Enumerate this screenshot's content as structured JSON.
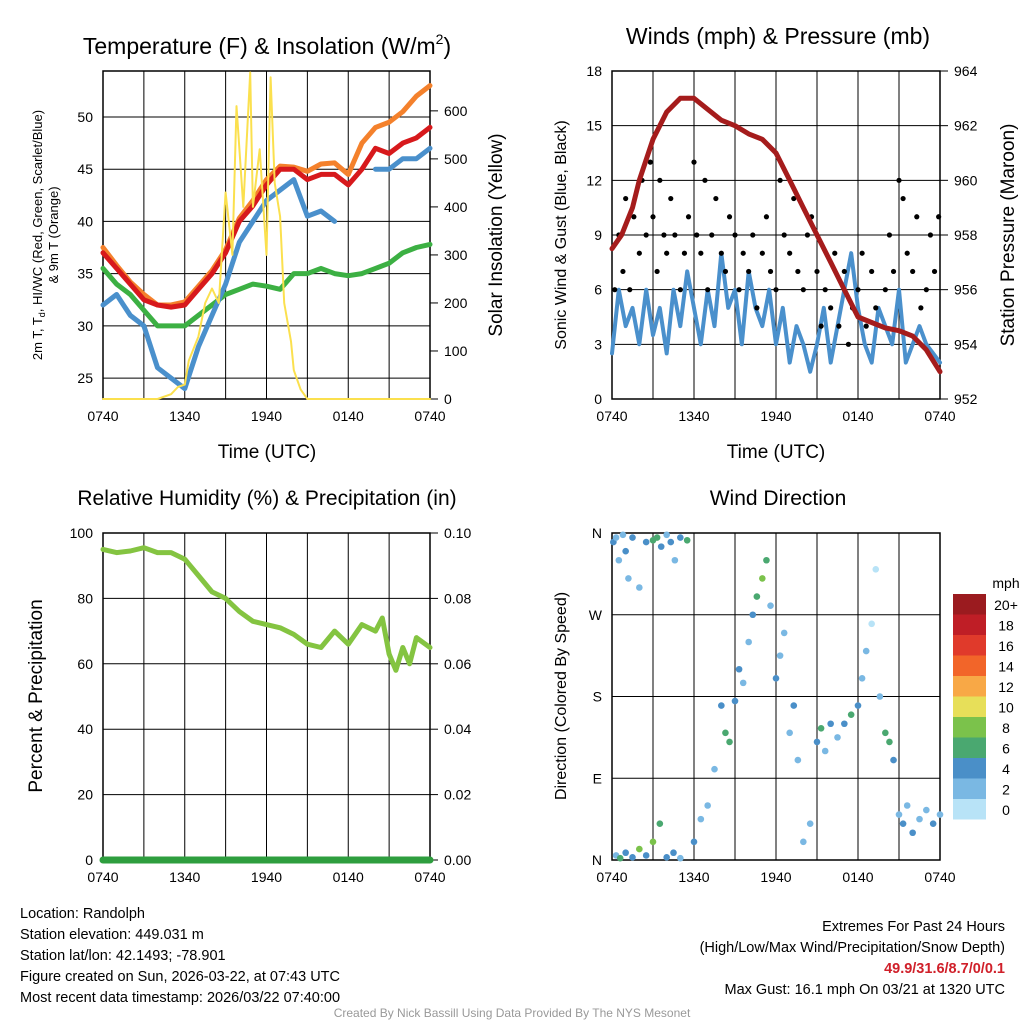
{
  "colors": {
    "red": "#d7191c",
    "orange": "#f4812c",
    "green": "#3cb043",
    "blue": "#4a90cc",
    "yellow": "#fbe04e",
    "black": "#000000",
    "maroon": "#a51c1c",
    "rh": "#84c441",
    "precip": "#2e9e3e"
  },
  "x_ticks": [
    "0740",
    "1340",
    "1940",
    "0140",
    "0740"
  ],
  "chart_data": [
    {
      "type": "line",
      "title_main": "Temperature (F) & Insolation (W/m",
      "title_sup": "2",
      "title_end": ")",
      "xlabel": "Time (UTC)",
      "ylabel_parts": [
        "2m T, T",
        "d",
        ", HI/WC (Red, Green, Scarlet/Blue)"
      ],
      "ylabel2": "& 9m T (Orange)",
      "y2label": "Solar Insolation (Yellow)",
      "x_unit": "hours since 0740 UTC",
      "xlim": [
        0,
        24
      ],
      "ylim": [
        23,
        54.4
      ],
      "yticks": [
        "25",
        "30",
        "35",
        "40",
        "45",
        "50"
      ],
      "y2lim": [
        0,
        683
      ],
      "y2ticks": [
        "0",
        "100",
        "200",
        "300",
        "400",
        "500",
        "600"
      ],
      "series": [
        {
          "name": "9m T",
          "color": "orange",
          "axis": "left",
          "values": [
            37.5,
            35.8,
            34.2,
            33,
            32,
            32,
            32.3,
            33.8,
            35.3,
            37.3,
            40.3,
            42,
            44,
            45.3,
            45.2,
            44.8,
            45.5,
            45.6,
            44.5,
            47.5,
            49,
            49.5,
            50.5,
            52,
            53
          ]
        },
        {
          "name": "2m T",
          "color": "red",
          "axis": "left",
          "values": [
            37,
            35.5,
            34,
            32.5,
            32,
            31.8,
            32,
            33.5,
            35,
            37,
            40,
            41.5,
            43.5,
            45,
            45,
            44,
            44.5,
            44.5,
            43.5,
            45,
            47,
            46.5,
            47.5,
            48,
            49
          ]
        },
        {
          "name": "Td",
          "color": "green",
          "axis": "left",
          "values": [
            35.5,
            34,
            33,
            31.5,
            30,
            30,
            30,
            31,
            32,
            33,
            33.5,
            34,
            33.8,
            33.5,
            35,
            35,
            35.5,
            35,
            34.8,
            35,
            35.5,
            36,
            37,
            37.5,
            37.8
          ]
        },
        {
          "name": "HI/WC",
          "color": "blue",
          "axis": "left",
          "values": [
            32,
            33,
            31,
            30,
            26,
            25,
            24,
            28,
            31,
            34,
            38,
            40,
            42,
            43,
            44,
            40.5,
            41,
            40,
            null,
            null,
            45,
            45,
            46,
            46,
            47
          ]
        },
        {
          "name": "Solar Insolation",
          "color": "yellow",
          "axis": "right",
          "points": [
            [
              0,
              0
            ],
            [
              4,
              0
            ],
            [
              5,
              10
            ],
            [
              5.5,
              25
            ],
            [
              6,
              30
            ],
            [
              6.3,
              80
            ],
            [
              7,
              130
            ],
            [
              7.5,
              200
            ],
            [
              8,
              230
            ],
            [
              8.5,
              200
            ],
            [
              9,
              430
            ],
            [
              9.5,
              300
            ],
            [
              9.8,
              610
            ],
            [
              10.3,
              400
            ],
            [
              10.8,
              680
            ],
            [
              11,
              400
            ],
            [
              11.5,
              520
            ],
            [
              12,
              300
            ],
            [
              12.3,
              670
            ],
            [
              12.6,
              450
            ],
            [
              13,
              380
            ],
            [
              13.3,
              200
            ],
            [
              13.8,
              120
            ],
            [
              14,
              60
            ],
            [
              14.5,
              20
            ],
            [
              15,
              0
            ],
            [
              24,
              0
            ]
          ]
        }
      ]
    },
    {
      "type": "line",
      "title": "Winds (mph) & Pressure (mb)",
      "xlabel": "Time (UTC)",
      "ylabel": "Sonic Wind & Gust (Blue, Black)",
      "y2label": "Station Pressure (Maroon)",
      "xlim": [
        0,
        24
      ],
      "ylim": [
        0,
        18
      ],
      "yticks": [
        "0",
        "3",
        "6",
        "9",
        "12",
        "15",
        "18"
      ],
      "y2lim": [
        952,
        964
      ],
      "y2ticks": [
        "952",
        "954",
        "956",
        "958",
        "960",
        "962",
        "964"
      ],
      "wind": [
        2.5,
        6,
        4,
        5,
        3,
        6,
        3.5,
        5,
        2.5,
        6,
        4,
        7,
        5,
        3,
        6,
        4,
        8,
        5,
        6,
        3,
        7,
        5,
        4,
        6,
        3,
        5,
        2,
        4,
        3,
        1.5,
        3,
        5,
        2,
        4,
        6,
        8,
        5,
        3,
        2,
        5,
        4,
        3,
        6,
        2,
        3,
        4,
        3,
        2.5,
        2
      ],
      "gust": [
        [
          0.2,
          6
        ],
        [
          0.5,
          9
        ],
        [
          0.8,
          7
        ],
        [
          1,
          11
        ],
        [
          1.3,
          6
        ],
        [
          1.6,
          10
        ],
        [
          2,
          8
        ],
        [
          2.2,
          12
        ],
        [
          2.5,
          9
        ],
        [
          2.8,
          13
        ],
        [
          3,
          10
        ],
        [
          3.3,
          7
        ],
        [
          3.5,
          12
        ],
        [
          3.8,
          9
        ],
        [
          4,
          8
        ],
        [
          4.3,
          11
        ],
        [
          4.6,
          9
        ],
        [
          5,
          6
        ],
        [
          5.3,
          8
        ],
        [
          5.6,
          10
        ],
        [
          6,
          13
        ],
        [
          6.2,
          9
        ],
        [
          6.5,
          8
        ],
        [
          6.8,
          12
        ],
        [
          7,
          6
        ],
        [
          7.3,
          9
        ],
        [
          7.6,
          11
        ],
        [
          8,
          8
        ],
        [
          8.3,
          7
        ],
        [
          8.6,
          10
        ],
        [
          9,
          9
        ],
        [
          9.3,
          6
        ],
        [
          9.6,
          8
        ],
        [
          10,
          7
        ],
        [
          10.3,
          9
        ],
        [
          10.6,
          5
        ],
        [
          11,
          8
        ],
        [
          11.3,
          10
        ],
        [
          11.6,
          7
        ],
        [
          12,
          6
        ],
        [
          12.3,
          12
        ],
        [
          12.6,
          9
        ],
        [
          13,
          8
        ],
        [
          13.3,
          11
        ],
        [
          13.6,
          7
        ],
        [
          14,
          6
        ],
        [
          14.3,
          9
        ],
        [
          14.6,
          10
        ],
        [
          15,
          7
        ],
        [
          15.3,
          4
        ],
        [
          15.6,
          6
        ],
        [
          16,
          5
        ],
        [
          16.3,
          8
        ],
        [
          16.6,
          4
        ],
        [
          17,
          7
        ],
        [
          17.3,
          3
        ],
        [
          17.6,
          5
        ],
        [
          18,
          6
        ],
        [
          18.3,
          8
        ],
        [
          18.6,
          4
        ],
        [
          19,
          7
        ],
        [
          19.3,
          5
        ],
        [
          20,
          6
        ],
        [
          20.3,
          9
        ],
        [
          20.6,
          7
        ],
        [
          21,
          12
        ],
        [
          21.3,
          11
        ],
        [
          21.6,
          8
        ],
        [
          22,
          7
        ],
        [
          22.3,
          10
        ],
        [
          22.6,
          5
        ],
        [
          23,
          6
        ],
        [
          23.3,
          9
        ],
        [
          23.6,
          7
        ],
        [
          23.9,
          10
        ]
      ],
      "pressure": [
        [
          0,
          957.5
        ],
        [
          0.7,
          958
        ],
        [
          1.5,
          959
        ],
        [
          2,
          960
        ],
        [
          3,
          961.5
        ],
        [
          4,
          962.5
        ],
        [
          5,
          963
        ],
        [
          6,
          963
        ],
        [
          7,
          962.6
        ],
        [
          8,
          962.2
        ],
        [
          9,
          962
        ],
        [
          10,
          961.7
        ],
        [
          11,
          961.5
        ],
        [
          12,
          961
        ],
        [
          13,
          960
        ],
        [
          14,
          959
        ],
        [
          15,
          958
        ],
        [
          16,
          957
        ],
        [
          17,
          956
        ],
        [
          18,
          955
        ],
        [
          19,
          954.8
        ],
        [
          20,
          954.6
        ],
        [
          21,
          954.5
        ],
        [
          22,
          954.3
        ],
        [
          23,
          953.8
        ],
        [
          24,
          953
        ]
      ]
    },
    {
      "type": "line",
      "title": "Relative Humidity (%) & Precipitation (in)",
      "ylabel": "Percent & Precipitation",
      "xlim": [
        0,
        24
      ],
      "ylim": [
        0,
        100
      ],
      "yticks": [
        "0",
        "20",
        "40",
        "60",
        "80",
        "100"
      ],
      "y2lim": [
        0,
        0.1
      ],
      "y2ticks": [
        "0.00",
        "0.02",
        "0.04",
        "0.06",
        "0.08",
        "0.10"
      ],
      "rh": [
        [
          0,
          95
        ],
        [
          1,
          94
        ],
        [
          2,
          94.5
        ],
        [
          3,
          95.5
        ],
        [
          4,
          94
        ],
        [
          5,
          94
        ],
        [
          5.5,
          93
        ],
        [
          6,
          92
        ],
        [
          7,
          87
        ],
        [
          8,
          82
        ],
        [
          9,
          80
        ],
        [
          10,
          76
        ],
        [
          11,
          73
        ],
        [
          12,
          72
        ],
        [
          13,
          71
        ],
        [
          14,
          69
        ],
        [
          15,
          66
        ],
        [
          16,
          65
        ],
        [
          17,
          70
        ],
        [
          18,
          66
        ],
        [
          19,
          72
        ],
        [
          20,
          70
        ],
        [
          20.5,
          74
        ],
        [
          21,
          63
        ],
        [
          21.5,
          58
        ],
        [
          22,
          65
        ],
        [
          22.5,
          60
        ],
        [
          23,
          68
        ],
        [
          24,
          65
        ]
      ],
      "precip": [
        [
          0,
          0
        ],
        [
          24,
          0
        ]
      ]
    },
    {
      "type": "scatter",
      "title": "Wind Direction",
      "ylabel": "Direction (Colored By Speed)",
      "xlim": [
        0,
        24
      ],
      "ylim": [
        0,
        360
      ],
      "yticks": [
        "N",
        "E",
        "S",
        "W",
        "N"
      ],
      "legend": {
        "title": "mph",
        "labels": [
          "20+",
          "18",
          "16",
          "14",
          "12",
          "10",
          "8",
          "6",
          "4",
          "2",
          "0"
        ],
        "colors": [
          "#9b1b1f",
          "#bf1e26",
          "#e03a2b",
          "#f26529",
          "#f8a846",
          "#e7df59",
          "#7bc24b",
          "#4aa870",
          "#4a8fc8",
          "#7ab8e3",
          "#b8e3f7"
        ]
      },
      "points": [
        [
          0.1,
          350,
          4
        ],
        [
          0.3,
          355,
          2
        ],
        [
          0.5,
          330,
          3
        ],
        [
          0.8,
          358,
          3
        ],
        [
          1,
          340,
          5
        ],
        [
          1.2,
          310,
          2
        ],
        [
          1.5,
          355,
          4
        ],
        [
          2,
          300,
          3
        ],
        [
          2.5,
          350,
          5
        ],
        [
          3,
          352,
          7
        ],
        [
          3.3,
          355,
          6
        ],
        [
          3.6,
          345,
          4
        ],
        [
          4,
          358,
          3
        ],
        [
          4.3,
          350,
          5
        ],
        [
          4.6,
          330,
          3
        ],
        [
          5,
          355,
          4
        ],
        [
          5.5,
          352,
          6
        ],
        [
          0.3,
          5,
          3
        ],
        [
          0.6,
          2,
          7
        ],
        [
          1,
          8,
          4
        ],
        [
          1.5,
          3,
          5
        ],
        [
          2,
          12,
          8
        ],
        [
          2.5,
          5,
          4
        ],
        [
          3,
          20,
          8
        ],
        [
          3.5,
          40,
          7
        ],
        [
          4,
          3,
          5
        ],
        [
          4.5,
          8,
          4
        ],
        [
          5,
          2,
          3
        ],
        [
          6,
          20,
          4
        ],
        [
          6.5,
          45,
          3
        ],
        [
          7,
          60,
          2
        ],
        [
          7.5,
          100,
          3
        ],
        [
          8,
          170,
          5
        ],
        [
          8.3,
          140,
          6
        ],
        [
          8.6,
          130,
          7
        ],
        [
          9,
          175,
          4
        ],
        [
          9.3,
          210,
          5
        ],
        [
          9.6,
          195,
          3
        ],
        [
          10,
          240,
          3
        ],
        [
          10.3,
          270,
          5
        ],
        [
          10.6,
          290,
          6
        ],
        [
          11,
          310,
          8
        ],
        [
          11.3,
          330,
          7
        ],
        [
          11.6,
          280,
          3
        ],
        [
          12,
          200,
          4
        ],
        [
          12.3,
          225,
          2
        ],
        [
          12.6,
          250,
          3
        ],
        [
          13,
          140,
          3
        ],
        [
          13.3,
          170,
          4
        ],
        [
          13.6,
          110,
          2
        ],
        [
          14,
          20,
          3
        ],
        [
          14.5,
          40,
          2
        ],
        [
          15,
          130,
          4
        ],
        [
          15.3,
          145,
          6
        ],
        [
          15.6,
          120,
          3
        ],
        [
          16,
          150,
          4
        ],
        [
          16.5,
          135,
          3
        ],
        [
          17,
          150,
          5
        ],
        [
          17.5,
          160,
          6
        ],
        [
          18,
          170,
          4
        ],
        [
          18.3,
          200,
          3
        ],
        [
          18.6,
          230,
          2
        ],
        [
          19,
          260,
          1
        ],
        [
          19.3,
          320,
          1
        ],
        [
          19.6,
          180,
          3
        ],
        [
          20,
          140,
          6
        ],
        [
          20.3,
          130,
          7
        ],
        [
          20.6,
          110,
          5
        ],
        [
          21,
          50,
          3
        ],
        [
          21.3,
          40,
          4
        ],
        [
          21.6,
          60,
          2
        ],
        [
          22,
          30,
          4
        ],
        [
          22.5,
          45,
          3
        ],
        [
          23,
          55,
          2
        ],
        [
          23.5,
          40,
          4
        ],
        [
          24,
          50,
          3
        ]
      ]
    }
  ],
  "footer": {
    "location": "Location: Randolph",
    "elevation": "Station elevation: 449.031 m",
    "latlon": "Station lat/lon: 42.1493; -78.901",
    "created": "Figure created on Sun, 2026-03-22, at 07:43 UTC",
    "recent": "Most recent data timestamp: 2026/03/22 07:40:00",
    "extremes_title": "Extremes For Past 24 Hours",
    "extremes_sub": "(High/Low/Max Wind/Precipitation/Snow Depth)",
    "extremes_values": "49.9/31.6/8.7/0/0.1",
    "max_gust": "Max Gust: 16.1 mph On 03/21 at 1320 UTC",
    "credit": "Created By Nick Bassill Using Data Provided By The NYS Mesonet"
  }
}
